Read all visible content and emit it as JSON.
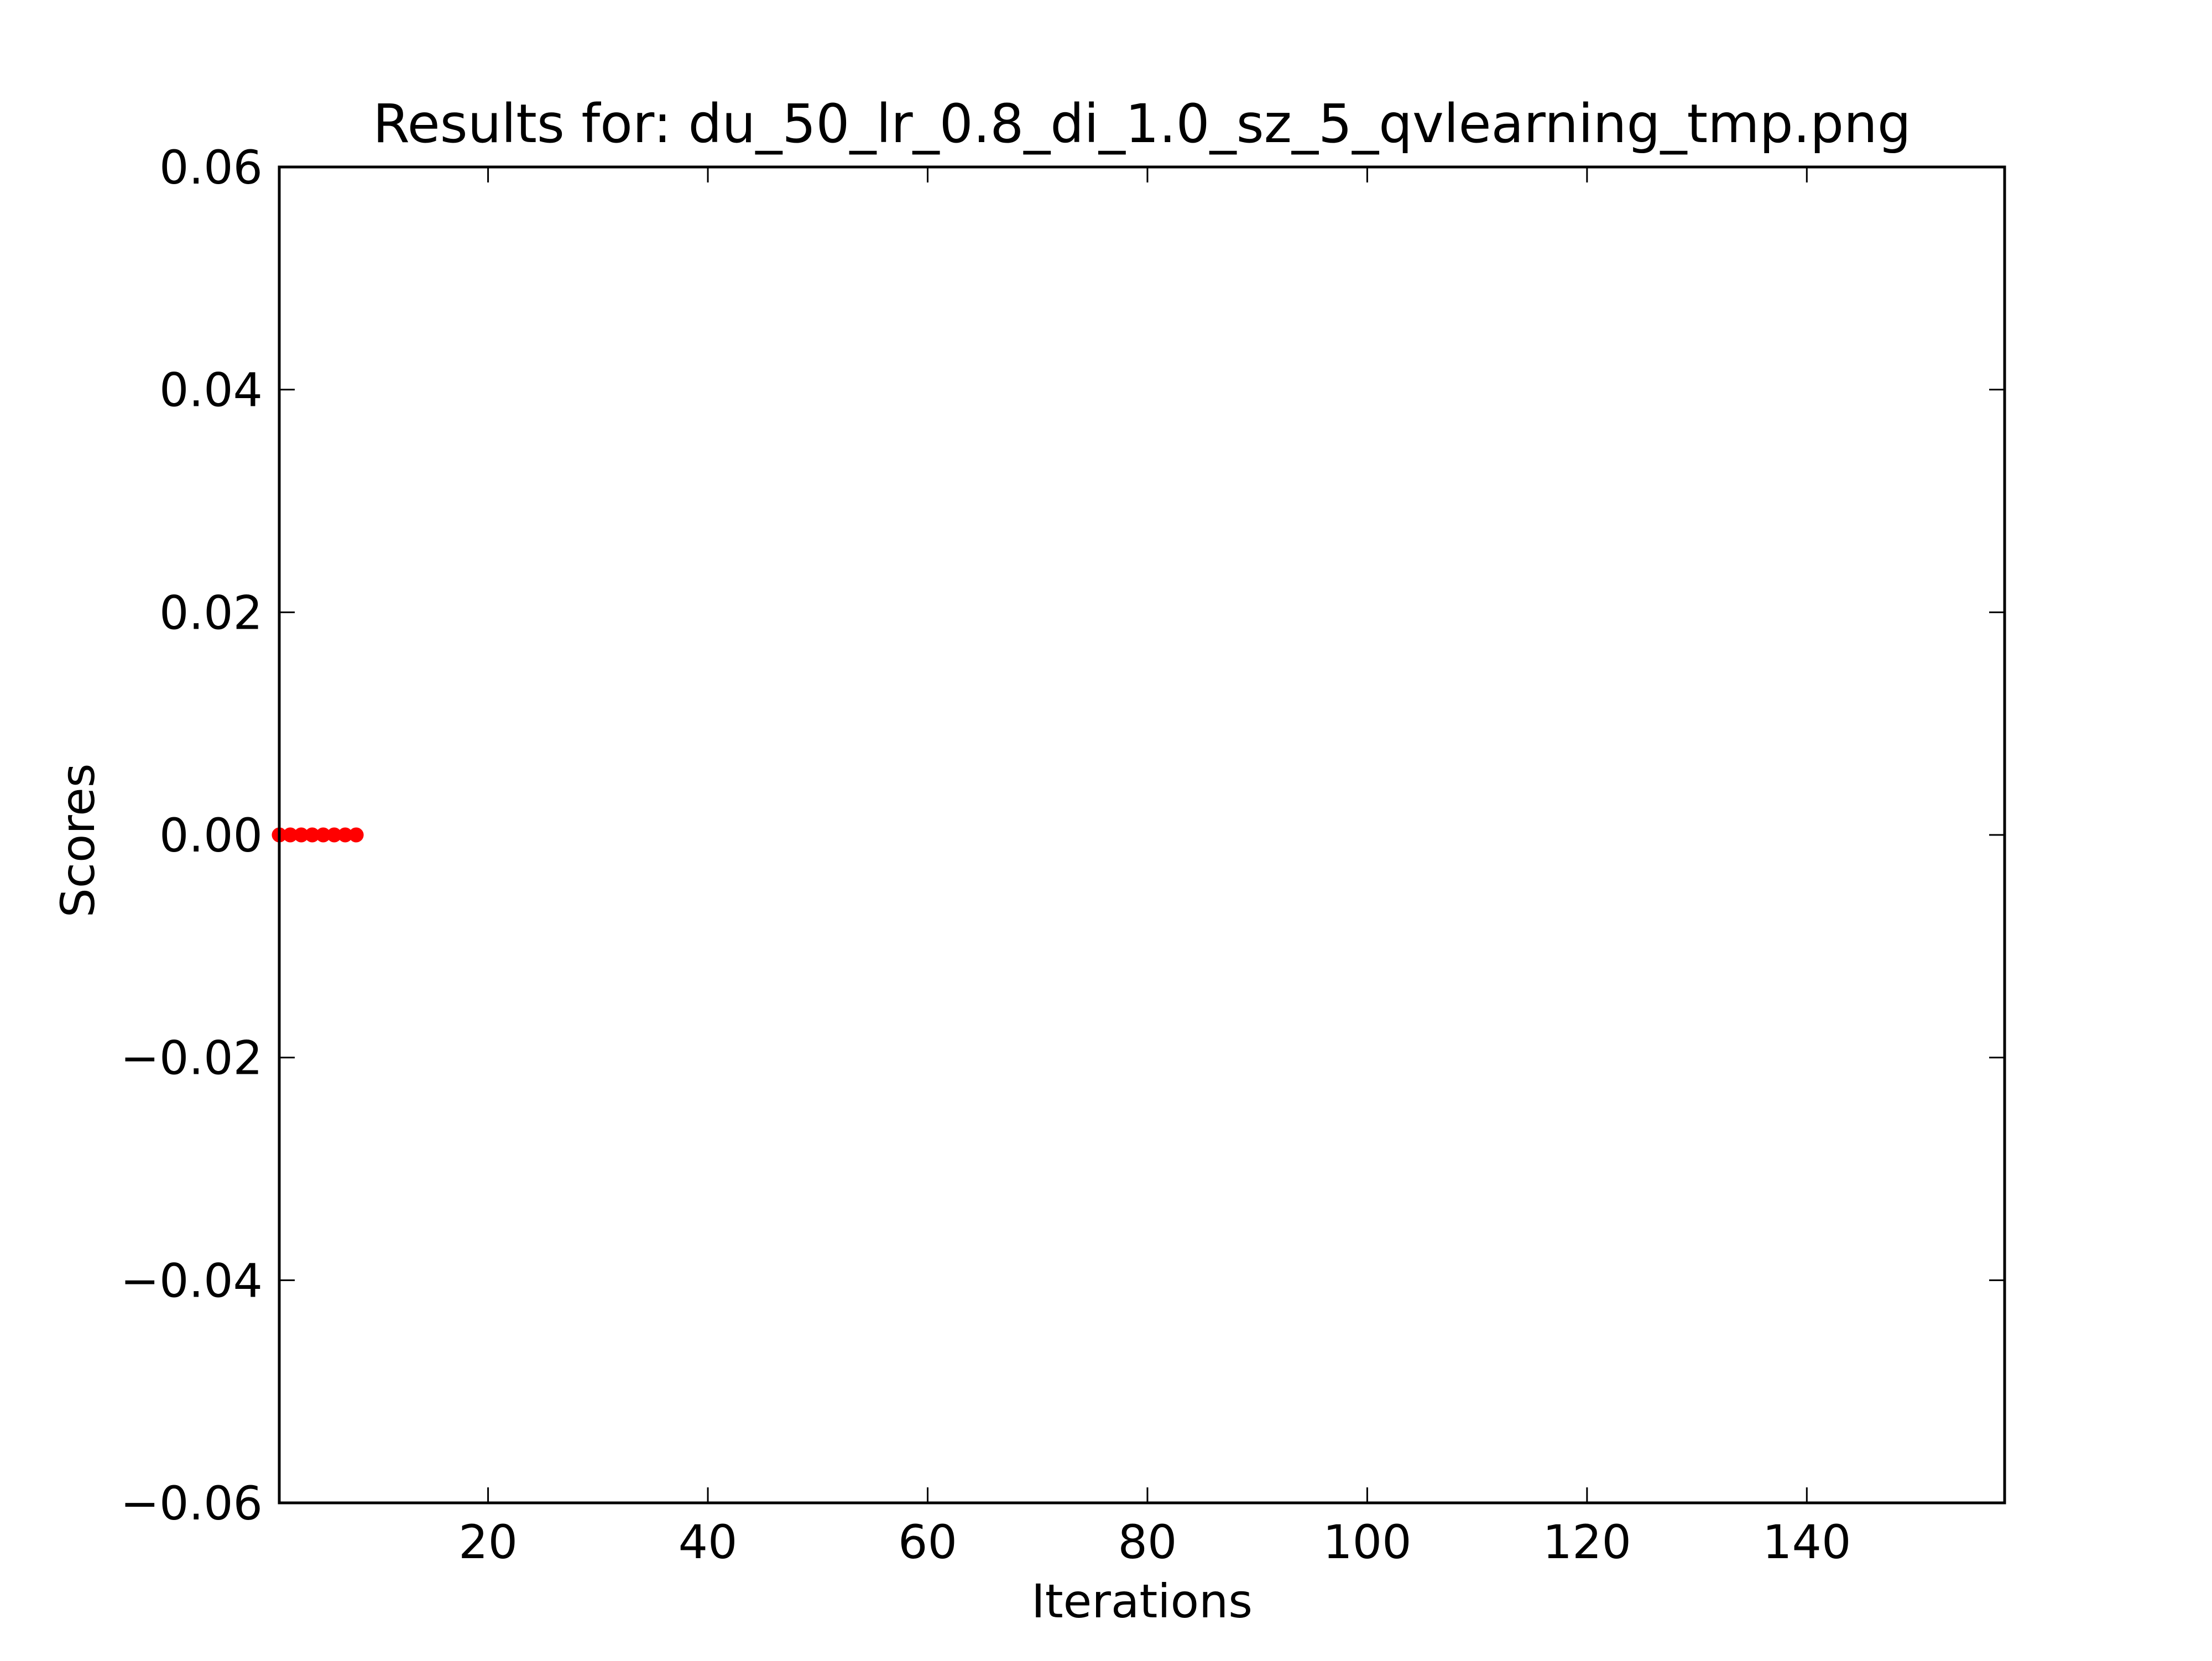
{
  "chart_data": {
    "type": "line",
    "title": "Results for: du_50_lr_0.8_di_1.0_sz_5_qvlearning_tmp.png",
    "xlabel": "Iterations",
    "ylabel": "Scores",
    "xlim": [
      1,
      158
    ],
    "ylim": [
      -0.06,
      0.06
    ],
    "xticks": [
      20,
      40,
      60,
      80,
      100,
      120,
      140
    ],
    "xtick_labels": [
      "20",
      "40",
      "60",
      "80",
      "100",
      "120",
      "140"
    ],
    "yticks": [
      -0.06,
      -0.04,
      -0.02,
      0.0,
      0.02,
      0.04,
      0.06
    ],
    "ytick_labels": [
      "−0.06",
      "−0.04",
      "−0.02",
      "0.00",
      "0.02",
      "0.04",
      "0.06"
    ],
    "grid": false,
    "series": [
      {
        "line_color": "#0000ff",
        "marker_color": "#ff0000",
        "x": [
          1,
          2,
          3,
          4,
          5,
          6,
          7,
          8
        ],
        "y": [
          0,
          0,
          0,
          0,
          0,
          0,
          0,
          0
        ]
      }
    ]
  }
}
